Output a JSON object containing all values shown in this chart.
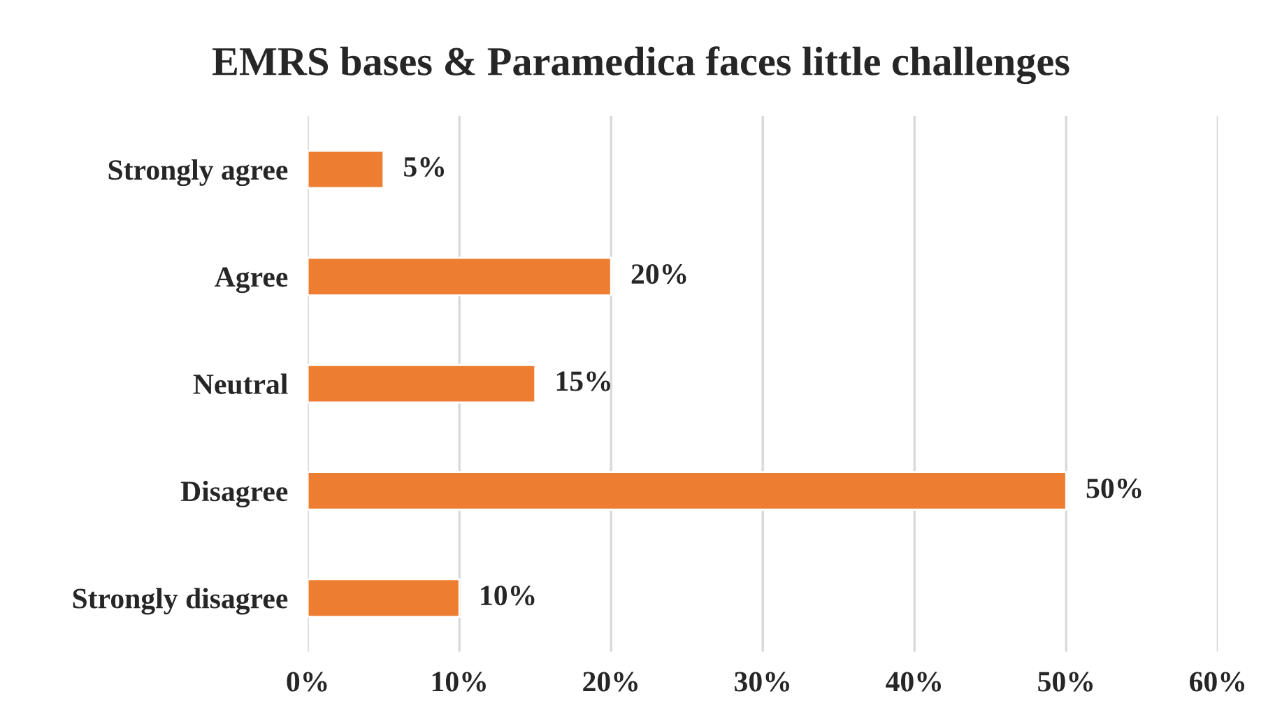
{
  "chart_data": {
    "type": "bar",
    "orientation": "horizontal",
    "title": "EMRS bases & Paramedica faces little challenges",
    "categories": [
      "Strongly agree",
      "Agree",
      "Neutral",
      "Disagree",
      "Strongly disagree"
    ],
    "values": [
      5,
      20,
      15,
      50,
      10
    ],
    "value_labels": [
      "5%",
      "20%",
      "15%",
      "50%",
      "10%"
    ],
    "color": "#ed7d31",
    "xlim": [
      0,
      60
    ],
    "xticks": [
      {
        "value": 0,
        "label": "0%"
      },
      {
        "value": 10,
        "label": "10%"
      },
      {
        "value": 20,
        "label": "20%"
      },
      {
        "value": 30,
        "label": "30%"
      },
      {
        "value": 40,
        "label": "40%"
      },
      {
        "value": 50,
        "label": "50%"
      },
      {
        "value": 60,
        "label": "60%"
      }
    ],
    "grid": "x"
  }
}
